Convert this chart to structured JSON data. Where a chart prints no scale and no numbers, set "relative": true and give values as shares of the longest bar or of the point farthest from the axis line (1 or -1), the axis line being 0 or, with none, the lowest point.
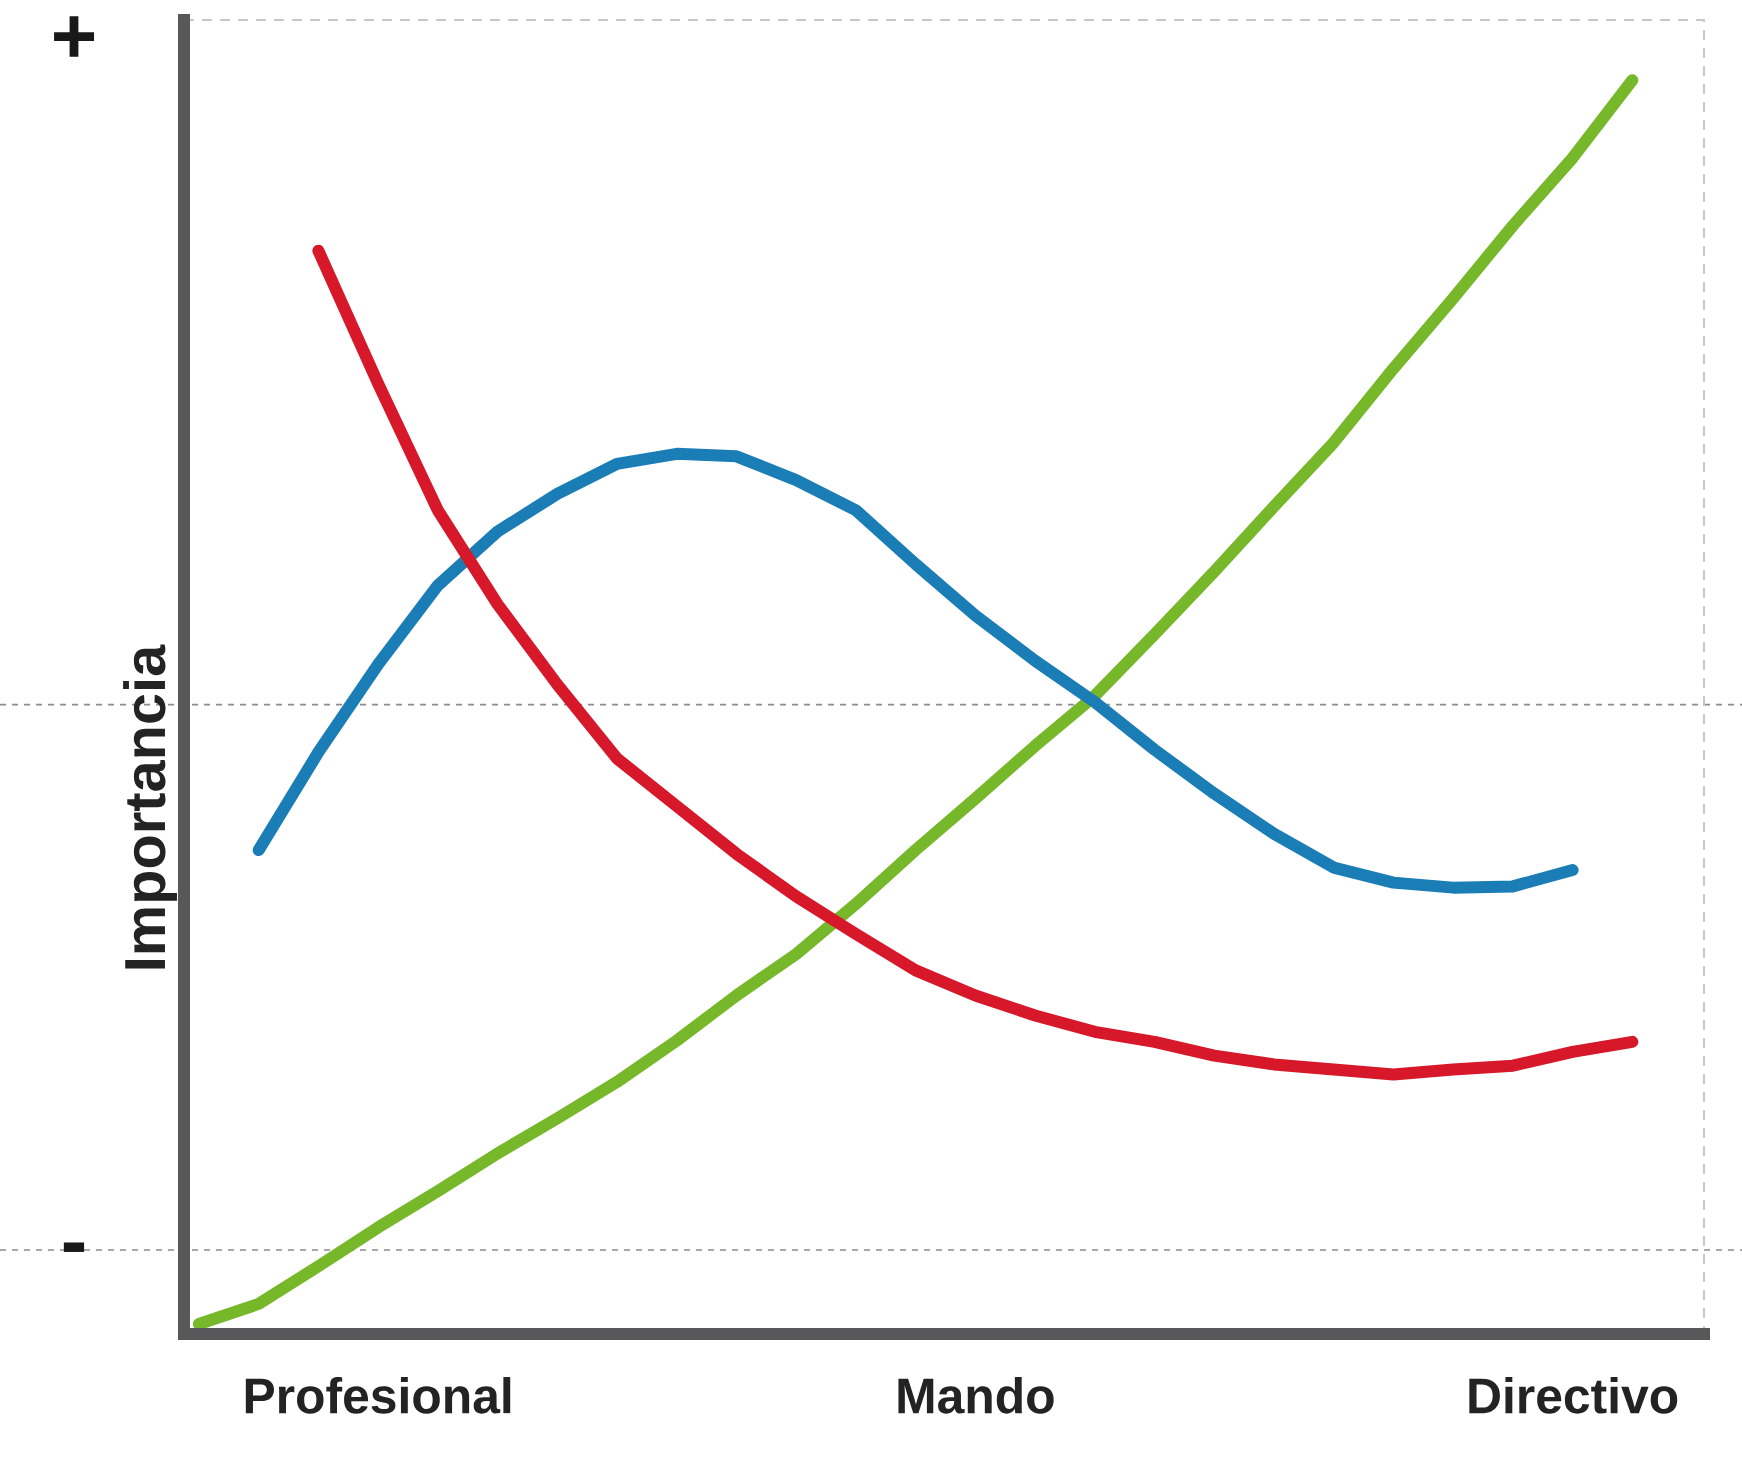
{
  "chart_data": {
    "type": "line",
    "relative": true,
    "ylabel": "Importancia",
    "categories": [
      null,
      null,
      null,
      "Profesional",
      null,
      null,
      null,
      null,
      null,
      null,
      null,
      null,
      null,
      "Mando",
      null,
      null,
      null,
      null,
      null,
      null,
      null,
      null,
      null,
      "Directivo",
      null
    ],
    "annotations": [
      "+",
      "-"
    ],
    "line_style": "solid",
    "marker": "none",
    "grid": false,
    "ref_lines": [
      {
        "axis": "y",
        "value": 0.502,
        "line_style": "dashed",
        "color": "#8c8c8c"
      },
      {
        "axis": "y",
        "value": 0.067,
        "line_style": "dashed",
        "color": "#8c8c8c"
      }
    ],
    "series": [
      {
        "color": "#76b82a",
        "values": [
          0.008,
          0.024,
          0.054,
          0.085,
          0.114,
          0.144,
          0.172,
          0.201,
          0.234,
          0.27,
          0.303,
          0.343,
          0.386,
          0.427,
          0.469,
          0.509,
          0.558,
          0.608,
          0.66,
          0.711,
          0.77,
          0.826,
          0.884,
          0.938,
          1
        ]
      },
      {
        "color": "#1a7db5",
        "values": [
          null,
          0.386,
          0.464,
          0.534,
          0.597,
          0.64,
          0.67,
          0.694,
          0.702,
          0.7,
          0.681,
          0.657,
          0.614,
          0.573,
          0.537,
          0.504,
          0.466,
          0.431,
          0.399,
          0.372,
          0.36,
          0.356,
          0.357,
          0.37,
          null
        ]
      },
      {
        "color": "#d7182a",
        "values": [
          null,
          null,
          0.864,
          0.758,
          0.657,
          0.582,
          0.518,
          0.459,
          0.421,
          0.383,
          0.349,
          0.319,
          0.29,
          0.27,
          0.254,
          0.241,
          0.233,
          0.222,
          0.215,
          0.211,
          0.207,
          0.211,
          0.214,
          0.225,
          0.233
        ]
      }
    ]
  }
}
